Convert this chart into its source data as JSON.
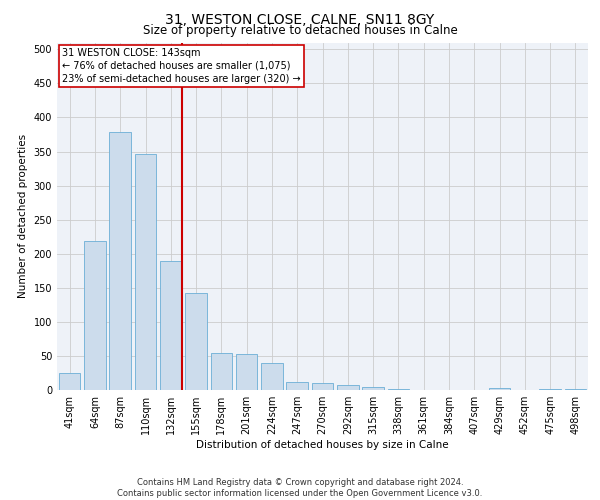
{
  "title": "31, WESTON CLOSE, CALNE, SN11 8GY",
  "subtitle": "Size of property relative to detached houses in Calne",
  "xlabel": "Distribution of detached houses by size in Calne",
  "ylabel": "Number of detached properties",
  "categories": [
    "41sqm",
    "64sqm",
    "87sqm",
    "110sqm",
    "132sqm",
    "155sqm",
    "178sqm",
    "201sqm",
    "224sqm",
    "247sqm",
    "270sqm",
    "292sqm",
    "315sqm",
    "338sqm",
    "361sqm",
    "384sqm",
    "407sqm",
    "429sqm",
    "452sqm",
    "475sqm",
    "498sqm"
  ],
  "bar_heights": [
    25,
    218,
    378,
    347,
    190,
    143,
    54,
    53,
    40,
    12,
    10,
    7,
    5,
    2,
    0,
    0,
    0,
    3,
    0,
    1,
    1
  ],
  "bar_color": "#ccdcec",
  "bar_edge_color": "#6baed6",
  "vline_color": "#cc0000",
  "annotation_text": "31 WESTON CLOSE: 143sqm\n← 76% of detached houses are smaller (1,075)\n23% of semi-detached houses are larger (320) →",
  "annotation_box_color": "#cc0000",
  "ylim": [
    0,
    510
  ],
  "yticks": [
    0,
    50,
    100,
    150,
    200,
    250,
    300,
    350,
    400,
    450,
    500
  ],
  "grid_color": "#cccccc",
  "background_color": "#eef2f8",
  "footer": "Contains HM Land Registry data © Crown copyright and database right 2024.\nContains public sector information licensed under the Open Government Licence v3.0.",
  "title_fontsize": 10,
  "subtitle_fontsize": 8.5,
  "label_fontsize": 7.5,
  "annotation_fontsize": 7,
  "footer_fontsize": 6,
  "tick_fontsize": 7,
  "ylabel_fontsize": 7.5
}
